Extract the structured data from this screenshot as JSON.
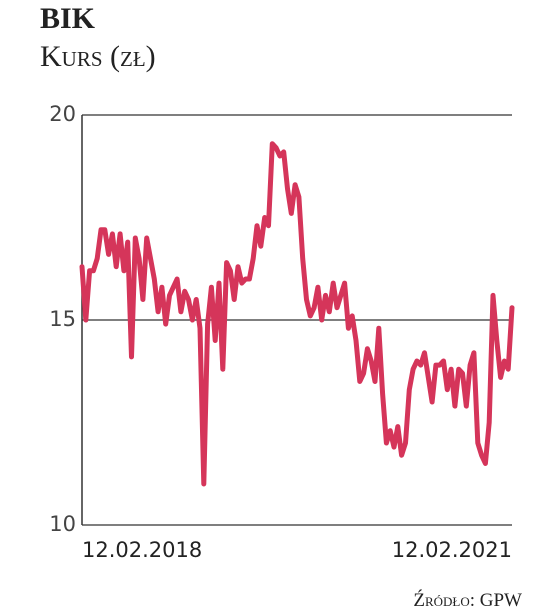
{
  "chart_data": {
    "type": "line",
    "title": "BIK",
    "subtitle": "Kurs (zł)",
    "source": "Źródło: GPW",
    "categories": [
      "12.02.2018",
      null,
      null,
      null,
      null,
      null,
      null,
      null,
      null,
      null,
      null,
      null,
      null,
      null,
      null,
      null,
      null,
      null,
      null,
      null,
      null,
      null,
      null,
      null,
      null,
      null,
      null,
      null,
      null,
      null,
      null,
      null,
      null,
      null,
      null,
      null,
      null,
      null,
      null,
      null,
      null,
      null,
      null,
      null,
      null,
      null,
      null,
      null,
      null,
      null,
      null,
      null,
      null,
      null,
      null,
      null,
      null,
      null,
      null,
      null,
      null,
      null,
      null,
      null,
      null,
      null,
      null,
      null,
      null,
      null,
      null,
      null,
      null,
      null,
      null,
      null,
      null,
      null,
      null,
      null,
      null,
      null,
      null,
      null,
      null,
      null,
      null,
      null,
      null,
      null,
      null,
      null,
      null,
      null,
      null,
      null,
      null,
      null,
      null,
      null,
      null,
      null,
      null,
      null,
      null,
      null,
      null,
      null,
      null,
      null,
      null,
      null,
      null,
      "12.02.2021"
    ],
    "values": [
      16.3,
      15.0,
      16.2,
      16.2,
      16.5,
      17.2,
      17.2,
      16.6,
      17.1,
      16.3,
      17.1,
      16.2,
      16.9,
      14.1,
      17.0,
      16.5,
      15.5,
      17.0,
      16.5,
      16.0,
      15.2,
      15.8,
      14.9,
      15.6,
      15.8,
      16.0,
      15.2,
      15.7,
      15.5,
      15.0,
      15.5,
      14.8,
      11.0,
      14.9,
      15.8,
      14.5,
      15.9,
      13.8,
      16.4,
      16.2,
      15.5,
      16.3,
      15.9,
      16.0,
      16.0,
      16.5,
      17.3,
      16.8,
      17.5,
      17.3,
      19.3,
      19.2,
      19.0,
      19.1,
      18.2,
      17.6,
      18.3,
      18.0,
      16.5,
      15.5,
      15.1,
      15.3,
      15.8,
      15.0,
      15.6,
      15.2,
      15.9,
      15.3,
      15.6,
      15.9,
      14.8,
      15.1,
      14.5,
      13.5,
      13.7,
      14.3,
      14.0,
      13.5,
      14.8,
      13.2,
      12.0,
      12.3,
      11.9,
      12.4,
      11.7,
      12.0,
      13.3,
      13.8,
      14.0,
      13.9,
      14.2,
      13.6,
      13.0,
      13.9,
      13.9,
      14.0,
      13.3,
      13.8,
      12.9,
      13.8,
      13.7,
      12.9,
      13.9,
      14.2,
      12.0,
      11.7,
      11.5,
      12.5,
      15.6,
      14.5,
      13.6,
      14.0,
      13.8,
      15.3
    ],
    "color": "#d5355a",
    "ylim": [
      10,
      20
    ],
    "yticks": [
      10,
      15,
      20
    ],
    "grid": true
  }
}
